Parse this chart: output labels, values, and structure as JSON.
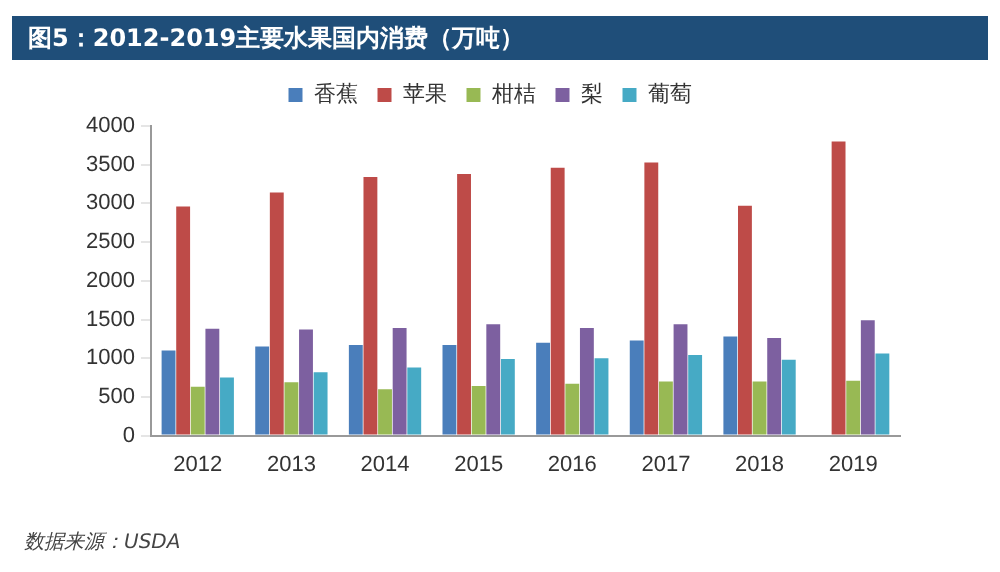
{
  "chart_data": {
    "type": "bar",
    "title": "图5：2012-2019主要水果国内消费（万吨）",
    "categories": [
      "2012",
      "2013",
      "2014",
      "2015",
      "2016",
      "2017",
      "2018",
      "2019"
    ],
    "series": [
      {
        "name": "香蕉",
        "color": "#4a7ebb",
        "values": [
          1100,
          1150,
          1170,
          1170,
          1200,
          1230,
          1280,
          null
        ]
      },
      {
        "name": "苹果",
        "color": "#be4b48",
        "values": [
          2960,
          3140,
          3340,
          3380,
          3460,
          3530,
          2970,
          3800
        ]
      },
      {
        "name": "柑桔",
        "color": "#98b954",
        "values": [
          630,
          690,
          600,
          640,
          670,
          700,
          700,
          710
        ]
      },
      {
        "name": "梨",
        "color": "#7d60a0",
        "values": [
          1380,
          1370,
          1390,
          1440,
          1390,
          1440,
          1260,
          1490
        ]
      },
      {
        "name": "葡萄",
        "color": "#46aac5",
        "values": [
          750,
          820,
          880,
          990,
          1000,
          1040,
          980,
          1060
        ]
      }
    ],
    "ylim": [
      0,
      4000
    ],
    "yticks": [
      0,
      500,
      1000,
      1500,
      2000,
      2500,
      3000,
      3500,
      4000
    ],
    "grid": false,
    "legend": "top",
    "annotations": [
      "数据来源：USDA"
    ]
  }
}
